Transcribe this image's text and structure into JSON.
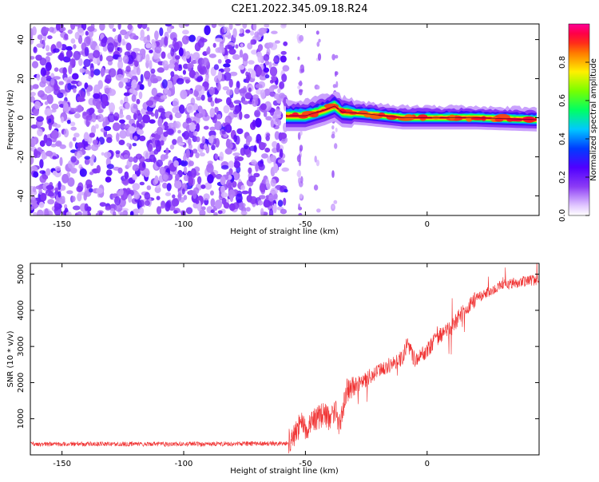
{
  "title": "C2E1.2022.345.09.18.R24",
  "chart_data": [
    {
      "type": "heatmap",
      "xlabel": "Height of straight line (km)",
      "ylabel": "Frequency (Hz)",
      "xlim": [
        -163,
        46
      ],
      "ylim": [
        -50,
        48
      ],
      "xticks": [
        -150,
        -100,
        -50,
        0
      ],
      "yticks": [
        -40,
        -20,
        0,
        20,
        40
      ],
      "colorbar": {
        "label": "Normalized spectral amplitude",
        "range": [
          0,
          1
        ],
        "ticks": [
          "0.0",
          "0.2",
          "0.4",
          "0.6",
          "0.8"
        ]
      },
      "noise_region_x": [
        -163,
        -58
      ],
      "signal_track": [
        {
          "x": -58,
          "y": 1
        },
        {
          "x": -50,
          "y": 1
        },
        {
          "x": -42,
          "y": 4
        },
        {
          "x": -38,
          "y": 6
        },
        {
          "x": -35,
          "y": 3
        },
        {
          "x": -25,
          "y": 2
        },
        {
          "x": -10,
          "y": 0
        },
        {
          "x": 0,
          "y": 0
        },
        {
          "x": 20,
          "y": 0
        },
        {
          "x": 45,
          "y": -1
        }
      ],
      "signal_peak_amplitude": 0.95
    },
    {
      "type": "line",
      "xlabel": "Height of straight line (km)",
      "ylabel": "SNR (10 * v/v)",
      "xlim": [
        -163,
        46
      ],
      "ylim": [
        0,
        5300
      ],
      "xticks": [
        -150,
        -100,
        -50,
        0
      ],
      "yticks": [
        1000,
        2000,
        3000,
        4000,
        5000
      ],
      "color": "#f03030",
      "series": [
        {
          "x": [
            -163,
            -150,
            -130,
            -110,
            -90,
            -70,
            -58,
            -55,
            -52,
            -50,
            -48,
            -45,
            -42,
            -40,
            -38,
            -36,
            -33,
            -30,
            -25,
            -20,
            -15,
            -10,
            -8,
            -5,
            0,
            5,
            10,
            15,
            20,
            25,
            30,
            35,
            40,
            46
          ],
          "y": [
            300,
            300,
            300,
            300,
            300,
            310,
            320,
            450,
            900,
            650,
            900,
            1000,
            1200,
            900,
            1300,
            800,
            1800,
            1900,
            2100,
            2300,
            2500,
            2700,
            3100,
            2600,
            2900,
            3300,
            3500,
            4000,
            4300,
            4500,
            4700,
            4750,
            4800,
            4850
          ]
        }
      ]
    }
  ]
}
